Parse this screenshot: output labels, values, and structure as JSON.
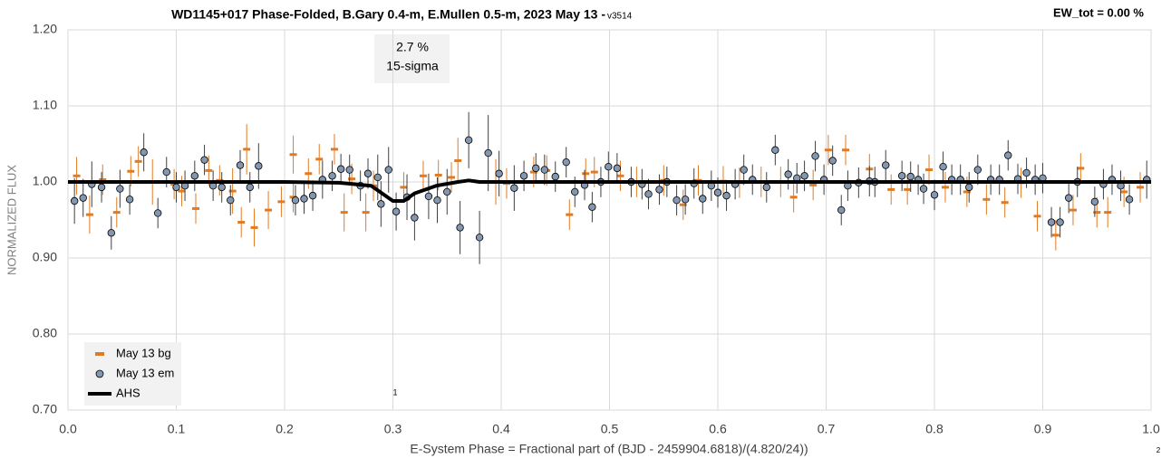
{
  "chart_data": {
    "type": "scatter",
    "title": "WD1145+017 Phase-Folded, B.Gary 0.4-m, E.Mullen 0.5-m, 2023 May 13 - ",
    "title_version": "v3514",
    "ew_label": "EW_tot = 0.00 %",
    "annotation": [
      "2.7 %",
      "15-sigma"
    ],
    "event_marker": "1",
    "corner_note": "2",
    "xlabel": "E-System Phase = Fractional part of (BJD - 2459904.6818)/(4.820/24))",
    "ylabel": "NORMALIZED FLUX",
    "xlim": [
      0,
      1
    ],
    "ylim": [
      0.7,
      1.2
    ],
    "xticks": [
      {
        "value": 0,
        "label": "0.0"
      },
      0.1,
      0.2,
      0.3,
      0.4,
      0.5,
      0.6,
      0.7,
      0.8,
      0.9,
      {
        "value": 1,
        "label": "1.0"
      }
    ],
    "yticks": [
      {
        "value": 0.7,
        "label": "0.70"
      },
      {
        "value": 0.8,
        "label": "0.80"
      },
      {
        "value": 0.9,
        "label": "0.90"
      },
      {
        "value": 1.0,
        "label": "1.00"
      },
      {
        "value": 1.1,
        "label": "1.10"
      },
      {
        "value": 1.2,
        "label": "1.20"
      }
    ],
    "grid": true,
    "legend": "lower left",
    "series": [
      {
        "name": "May 13 bg",
        "color": "#e07b24",
        "marker": "dash",
        "x": [
          0.008,
          0.02,
          0.032,
          0.045,
          0.058,
          0.065,
          0.078,
          0.098,
          0.105,
          0.118,
          0.13,
          0.14,
          0.152,
          0.16,
          0.165,
          0.172,
          0.185,
          0.197,
          0.208,
          0.208,
          0.222,
          0.232,
          0.246,
          0.255,
          0.262,
          0.275,
          0.282,
          0.31,
          0.328,
          0.342,
          0.354,
          0.36,
          0.395,
          0.405,
          0.43,
          0.442,
          0.463,
          0.478,
          0.486,
          0.51,
          0.525,
          0.55,
          0.568,
          0.582,
          0.605,
          0.62,
          0.64,
          0.658,
          0.67,
          0.688,
          0.702,
          0.718,
          0.74,
          0.76,
          0.775,
          0.795,
          0.81,
          0.83,
          0.848,
          0.865,
          0.88,
          0.895,
          0.912,
          0.928,
          0.935,
          0.95,
          0.96,
          0.975,
          0.99
        ],
        "values": [
          1.008,
          0.957,
          1.003,
          0.96,
          1.014,
          1.027,
          1.0,
          0.997,
          0.988,
          0.965,
          1.015,
          1.002,
          0.988,
          0.947,
          1.043,
          0.94,
          0.963,
          0.974,
          0.98,
          1.036,
          1.011,
          1.03,
          1.043,
          0.96,
          1.004,
          0.96,
          0.995,
          0.993,
          1.008,
          1.009,
          1.006,
          1.028,
          1.0,
          0.998,
          1.013,
          1.015,
          0.957,
          1.011,
          1.013,
          1.008,
          1.0,
          1.002,
          0.97,
          1.002,
          1.001,
          0.999,
          1.0,
          1.0,
          0.98,
          0.996,
          1.042,
          1.042,
          1.017,
          0.99,
          0.99,
          1.016,
          0.993,
          0.987,
          0.977,
          0.973,
          0.999,
          0.955,
          0.93,
          0.963,
          1.018,
          0.96,
          0.96,
          0.987,
          0.993
        ],
        "errors": [
          0.025,
          0.025,
          0.02,
          0.02,
          0.02,
          0.02,
          0.03,
          0.02,
          0.02,
          0.02,
          0.02,
          0.02,
          0.03,
          0.02,
          0.033,
          0.025,
          0.025,
          0.02,
          0.02,
          0.025,
          0.02,
          0.02,
          0.02,
          0.025,
          0.02,
          0.025,
          0.02,
          0.02,
          0.02,
          0.02,
          0.02,
          0.03,
          0.03,
          0.02,
          0.02,
          0.02,
          0.02,
          0.02,
          0.02,
          0.02,
          0.02,
          0.02,
          0.02,
          0.02,
          0.02,
          0.02,
          0.02,
          0.02,
          0.02,
          0.02,
          0.02,
          0.02,
          0.02,
          0.02,
          0.02,
          0.02,
          0.02,
          0.02,
          0.02,
          0.02,
          0.02,
          0.02,
          0.02,
          0.02,
          0.02,
          0.02,
          0.02,
          0.02,
          0.02
        ]
      },
      {
        "name": "May 13 em",
        "color": "#8497b0",
        "marker": "circle",
        "x": [
          0.006,
          0.014,
          0.022,
          0.031,
          0.04,
          0.048,
          0.057,
          0.07,
          0.083,
          0.091,
          0.1,
          0.108,
          0.117,
          0.126,
          0.134,
          0.142,
          0.15,
          0.159,
          0.168,
          0.176,
          0.21,
          0.218,
          0.226,
          0.235,
          0.244,
          0.252,
          0.26,
          0.27,
          0.277,
          0.286,
          0.289,
          0.296,
          0.303,
          0.313,
          0.32,
          0.333,
          0.341,
          0.35,
          0.362,
          0.37,
          0.38,
          0.388,
          0.398,
          0.412,
          0.421,
          0.432,
          0.44,
          0.45,
          0.46,
          0.468,
          0.477,
          0.484,
          0.492,
          0.499,
          0.507,
          0.52,
          0.53,
          0.536,
          0.546,
          0.553,
          0.562,
          0.57,
          0.578,
          0.586,
          0.594,
          0.6,
          0.608,
          0.616,
          0.624,
          0.632,
          0.645,
          0.653,
          0.665,
          0.673,
          0.68,
          0.69,
          0.698,
          0.706,
          0.714,
          0.72,
          0.73,
          0.74,
          0.745,
          0.755,
          0.77,
          0.778,
          0.785,
          0.79,
          0.8,
          0.808,
          0.816,
          0.824,
          0.832,
          0.84,
          0.852,
          0.86,
          0.868,
          0.877,
          0.885,
          0.893,
          0.9,
          0.908,
          0.916,
          0.924,
          0.932,
          0.948,
          0.956,
          0.964,
          0.972,
          0.98,
          0.996
        ],
        "values": [
          0.975,
          0.979,
          0.997,
          0.993,
          0.933,
          0.991,
          0.977,
          1.039,
          0.959,
          1.013,
          0.993,
          0.995,
          1.008,
          1.029,
          0.995,
          0.993,
          0.976,
          1.022,
          0.993,
          1.021,
          0.976,
          0.978,
          0.982,
          1.003,
          1.008,
          1.017,
          1.016,
          0.995,
          1.011,
          1.006,
          0.971,
          1.016,
          0.961,
          0.98,
          0.953,
          0.981,
          0.976,
          0.987,
          0.94,
          1.055,
          0.927,
          1.038,
          1.011,
          0.992,
          1.008,
          1.018,
          1.016,
          1.007,
          1.026,
          0.987,
          0.996,
          0.967,
          1.0,
          1.02,
          1.018,
          1.0,
          0.997,
          0.984,
          0.99,
          1.0,
          0.976,
          0.977,
          0.998,
          0.978,
          0.995,
          0.986,
          0.982,
          0.997,
          1.016,
          1.003,
          0.993,
          1.042,
          1.01,
          1.005,
          1.008,
          1.034,
          1.003,
          1.028,
          0.963,
          0.995,
          0.999,
          1.001,
          1.0,
          1.022,
          1.008,
          1.007,
          1.003,
          0.991,
          0.983,
          1.02,
          1.003,
          1.003,
          0.993,
          1.016,
          1.003,
          1.003,
          1.035,
          1.004,
          1.012,
          1.003,
          1.005,
          0.947,
          0.947,
          0.979,
          1.0,
          0.974,
          0.997,
          1.003,
          0.995,
          0.977,
          1.003
        ],
        "errors": [
          0.03,
          0.025,
          0.03,
          0.02,
          0.022,
          0.025,
          0.02,
          0.025,
          0.02,
          0.02,
          0.02,
          0.02,
          0.02,
          0.02,
          0.02,
          0.02,
          0.02,
          0.02,
          0.02,
          0.03,
          0.02,
          0.02,
          0.02,
          0.025,
          0.02,
          0.02,
          0.02,
          0.02,
          0.02,
          0.03,
          0.03,
          0.03,
          0.025,
          0.03,
          0.03,
          0.03,
          0.03,
          0.03,
          0.035,
          0.037,
          0.035,
          0.05,
          0.03,
          0.03,
          0.02,
          0.02,
          0.02,
          0.02,
          0.02,
          0.02,
          0.02,
          0.02,
          0.02,
          0.02,
          0.02,
          0.02,
          0.02,
          0.02,
          0.02,
          0.02,
          0.02,
          0.02,
          0.02,
          0.02,
          0.02,
          0.02,
          0.02,
          0.02,
          0.02,
          0.02,
          0.02,
          0.02,
          0.02,
          0.02,
          0.02,
          0.02,
          0.02,
          0.02,
          0.02,
          0.02,
          0.02,
          0.02,
          0.02,
          0.02,
          0.02,
          0.02,
          0.02,
          0.02,
          0.02,
          0.02,
          0.02,
          0.02,
          0.02,
          0.02,
          0.02,
          0.02,
          0.02,
          0.02,
          0.02,
          0.02,
          0.02,
          0.02,
          0.02,
          0.02,
          0.02,
          0.02,
          0.02,
          0.02,
          0.02,
          0.02,
          0.025
        ]
      },
      {
        "name": "AHS",
        "color": "#000000",
        "marker": "line",
        "x": [
          0,
          0.2,
          0.25,
          0.28,
          0.29,
          0.3,
          0.31,
          0.32,
          0.34,
          0.36,
          0.37,
          0.38,
          1.0
        ],
        "values": [
          1.0,
          1.0,
          0.999,
          0.995,
          0.985,
          0.975,
          0.975,
          0.985,
          0.995,
          1.0,
          1.002,
          1.0,
          1.0
        ]
      }
    ]
  }
}
